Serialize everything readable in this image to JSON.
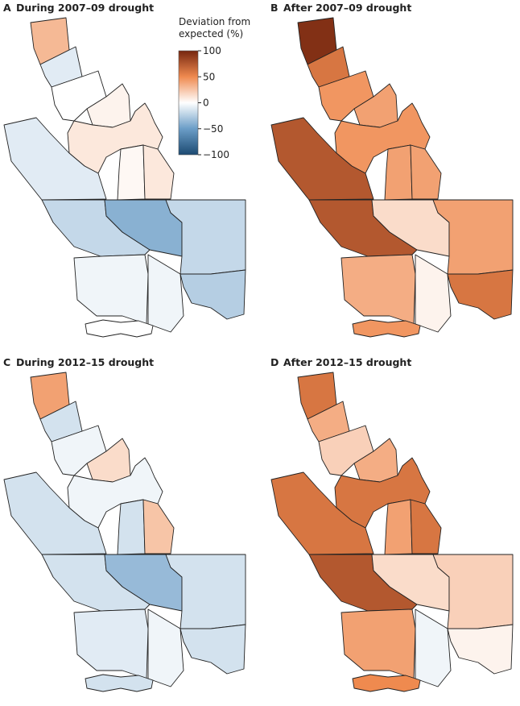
{
  "panels": [
    {
      "label": "A",
      "title": "During 2007–09 drought",
      "values": [
        30,
        -10,
        0,
        5,
        10,
        -10,
        3,
        10,
        -20,
        -40,
        -20,
        -5,
        -5,
        -25,
        0
      ]
    },
    {
      "label": "B",
      "title": "After 2007–09 drought",
      "values": [
        95,
        60,
        45,
        40,
        45,
        75,
        40,
        40,
        75,
        15,
        40,
        35,
        5,
        60,
        45
      ]
    },
    {
      "label": "C",
      "title": "During 2012–15 drought",
      "values": [
        40,
        -15,
        -5,
        15,
        -5,
        -15,
        -15,
        25,
        -15,
        -35,
        -15,
        -10,
        -5,
        -15,
        -15
      ]
    },
    {
      "label": "D",
      "title": "After 2012–15 drought",
      "values": [
        60,
        35,
        20,
        35,
        60,
        60,
        40,
        60,
        75,
        15,
        20,
        40,
        -5,
        5,
        50
      ]
    }
  ],
  "legend": {
    "title": "Deviation from expected (%)",
    "ticks": [
      100,
      50,
      0,
      {
        "value": -50,
        "label": "−50"
      },
      {
        "value": -100,
        "label": "−100"
      }
    ],
    "colors": [
      "#76260f",
      "#ef8a4f",
      "#ffffff",
      "#6b9dc7",
      "#1c4a72"
    ]
  }
}
